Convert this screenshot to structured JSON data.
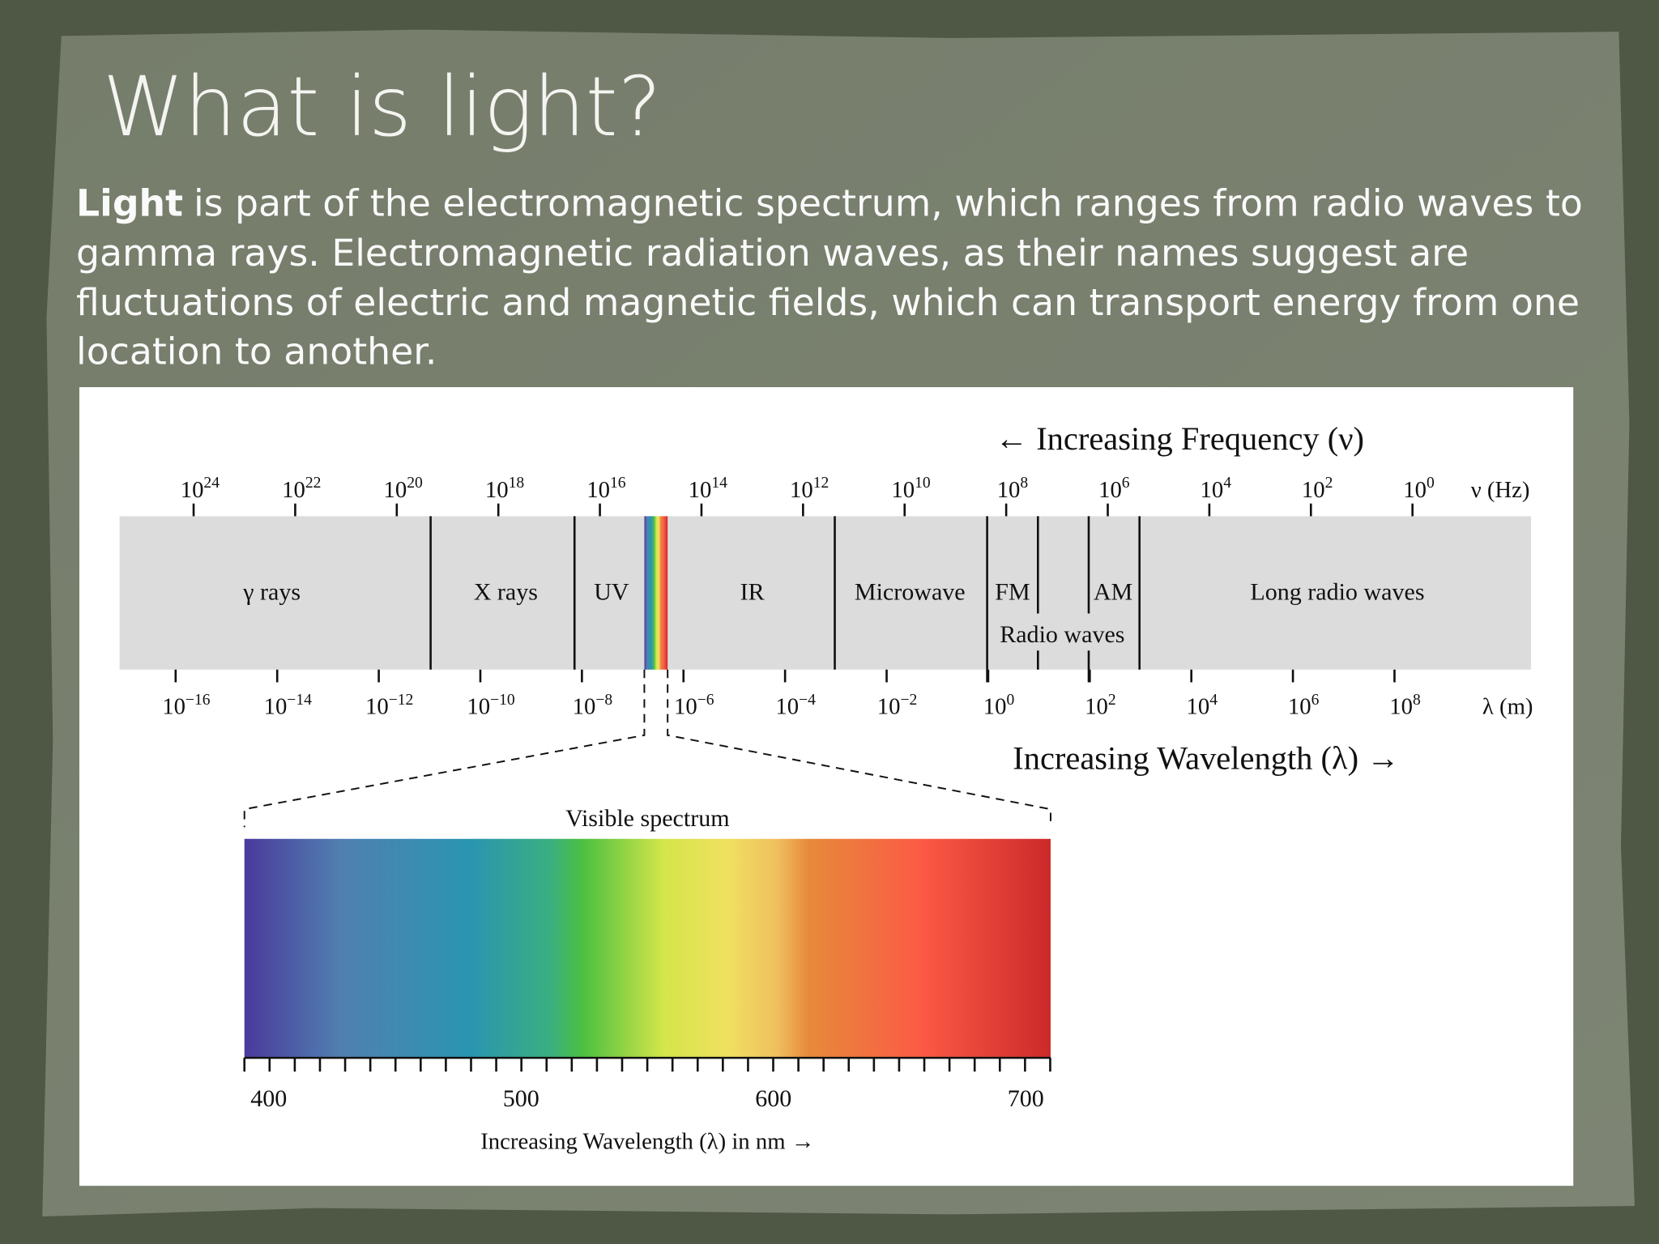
{
  "slide": {
    "title": "What is light?",
    "body": {
      "bold": "Light",
      "lines": [
        "is part of the electromagnetic spectrum, which ranges from radio waves to",
        "gamma rays. Electromagnetic radiation waves, as their names suggest are",
        "fluctuations of electric and magnetic fields, which can transport energy from one",
        "location to another."
      ]
    },
    "diagram": {
      "frequency_axis": {
        "label": "← Increasing Frequency (ν)",
        "unit": "ν (Hz)",
        "base": "10",
        "exponents": [
          "24",
          "22",
          "20",
          "18",
          "16",
          "14",
          "12",
          "10",
          "8",
          "6",
          "4",
          "2",
          "0"
        ]
      },
      "wavelength_axis": {
        "label": "Increasing Wavelength (λ) →",
        "unit": "λ (m)",
        "base": "10",
        "exponents": [
          "−16",
          "−14",
          "−12",
          "−10",
          "−8",
          "−6",
          "−4",
          "−2",
          "0",
          "2",
          "4",
          "6",
          "8"
        ]
      },
      "regions": [
        "γ rays",
        "X rays",
        "UV",
        "IR",
        "Microwave",
        "FM",
        "AM",
        "Long radio waves"
      ],
      "radio_group": "Radio waves",
      "visible": {
        "title": "Visible spectrum",
        "ticks": [
          "400",
          "500",
          "600",
          "700"
        ],
        "axis_label": "Increasing Wavelength (λ) in nm →"
      }
    }
  }
}
